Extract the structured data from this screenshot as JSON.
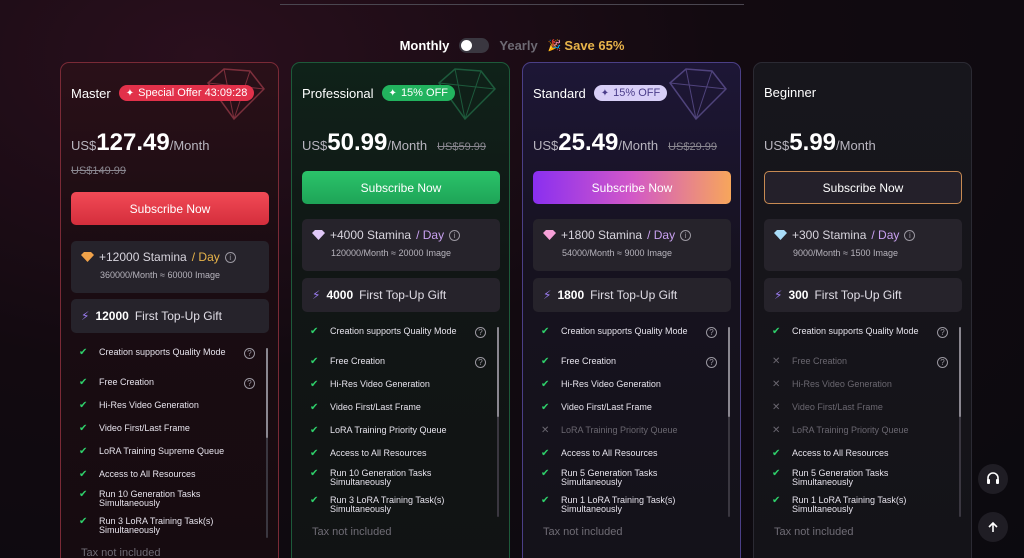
{
  "billing": {
    "monthly_label": "Monthly",
    "yearly_label": "Yearly",
    "save_label": "Save 65%",
    "toggle_state": "monthly"
  },
  "plans": [
    {
      "name": "Master",
      "badge": "Special Offer 43:09:28",
      "currency": "US$",
      "price": "127.49",
      "per": "/Month",
      "original_price": "US$149.99",
      "subscribe_label": "Subscribe Now",
      "stamina": "+12000 Stamina",
      "stamina_unit": "/ Day",
      "stamina_detail": "360000/Month ≈ 60000 Image",
      "gift_amount": "12000",
      "gift_label": "First Top-Up Gift",
      "tax_note": "Tax not included",
      "features": [
        {
          "text": "Creation supports Quality Mode",
          "included": true,
          "info": true
        },
        {
          "text": "Free Creation",
          "included": true,
          "info": true
        },
        {
          "text": "Hi-Res Video Generation",
          "included": true,
          "info": false
        },
        {
          "text": "Video First/Last Frame",
          "included": true,
          "info": false
        },
        {
          "text": "LoRA Training Supreme Queue",
          "included": true,
          "info": false
        },
        {
          "text": "Access to All Resources",
          "included": true,
          "info": false
        },
        {
          "text": "Run 10 Generation Tasks Simultaneously",
          "included": true,
          "info": false
        },
        {
          "text": "Run 3 LoRA Training Task(s) Simultaneously",
          "included": true,
          "info": false
        }
      ]
    },
    {
      "name": "Professional",
      "badge": "15% OFF",
      "currency": "US$",
      "price": "50.99",
      "per": "/Month",
      "original_price": "US$59.99",
      "subscribe_label": "Subscribe Now",
      "stamina": "+4000 Stamina",
      "stamina_unit": "/ Day",
      "stamina_detail": "120000/Month ≈ 20000 Image",
      "gift_amount": "4000",
      "gift_label": "First Top-Up Gift",
      "tax_note": "Tax not included",
      "features": [
        {
          "text": "Creation supports Quality Mode",
          "included": true,
          "info": true
        },
        {
          "text": "Free Creation",
          "included": true,
          "info": true
        },
        {
          "text": "Hi-Res Video Generation",
          "included": true,
          "info": false
        },
        {
          "text": "Video First/Last Frame",
          "included": true,
          "info": false
        },
        {
          "text": "LoRA Training Priority Queue",
          "included": true,
          "info": false
        },
        {
          "text": "Access to All Resources",
          "included": true,
          "info": false
        },
        {
          "text": "Run 10 Generation Tasks Simultaneously",
          "included": true,
          "info": false
        },
        {
          "text": "Run 3 LoRA Training Task(s) Simultaneously",
          "included": true,
          "info": false
        }
      ]
    },
    {
      "name": "Standard",
      "badge": "15% OFF",
      "currency": "US$",
      "price": "25.49",
      "per": "/Month",
      "original_price": "US$29.99",
      "subscribe_label": "Subscribe Now",
      "stamina": "+1800 Stamina",
      "stamina_unit": "/ Day",
      "stamina_detail": "54000/Month ≈ 9000 Image",
      "gift_amount": "1800",
      "gift_label": "First Top-Up Gift",
      "tax_note": "Tax not included",
      "features": [
        {
          "text": "Creation supports Quality Mode",
          "included": true,
          "info": true
        },
        {
          "text": "Free Creation",
          "included": true,
          "info": true
        },
        {
          "text": "Hi-Res Video Generation",
          "included": true,
          "info": false
        },
        {
          "text": "Video First/Last Frame",
          "included": true,
          "info": false
        },
        {
          "text": "LoRA Training Priority Queue",
          "included": false,
          "info": false
        },
        {
          "text": "Access to All Resources",
          "included": true,
          "info": false
        },
        {
          "text": "Run 5 Generation Tasks Simultaneously",
          "included": true,
          "info": false
        },
        {
          "text": "Run 1 LoRA Training Task(s) Simultaneously",
          "included": true,
          "info": false
        }
      ]
    },
    {
      "name": "Beginner",
      "badge": "",
      "currency": "US$",
      "price": "5.99",
      "per": "/Month",
      "original_price": "",
      "subscribe_label": "Subscribe Now",
      "stamina": "+300 Stamina",
      "stamina_unit": "/ Day",
      "stamina_detail": "9000/Month ≈ 1500 Image",
      "gift_amount": "300",
      "gift_label": "First Top-Up Gift",
      "tax_note": "Tax not included",
      "features": [
        {
          "text": "Creation supports Quality Mode",
          "included": true,
          "info": true
        },
        {
          "text": "Free Creation",
          "included": false,
          "info": true
        },
        {
          "text": "Hi-Res Video Generation",
          "included": false,
          "info": false
        },
        {
          "text": "Video First/Last Frame",
          "included": false,
          "info": false
        },
        {
          "text": "LoRA Training Priority Queue",
          "included": false,
          "info": false
        },
        {
          "text": "Access to All Resources",
          "included": true,
          "info": false
        },
        {
          "text": "Run 5 Generation Tasks Simultaneously",
          "included": true,
          "info": false
        },
        {
          "text": "Run 1 LoRA Training Task(s) Simultaneously",
          "included": true,
          "info": false
        }
      ]
    }
  ],
  "icons": {
    "support": "headset-icon",
    "scroll_top": "arrow-up-icon"
  },
  "colors": {
    "master_accent": "#e2314a",
    "pro_accent": "#22b35e",
    "standard_accent": "#8a2ff0",
    "beginner_accent": "#c78a52",
    "check": "#2ecf6a",
    "save": "#e8b44a"
  }
}
